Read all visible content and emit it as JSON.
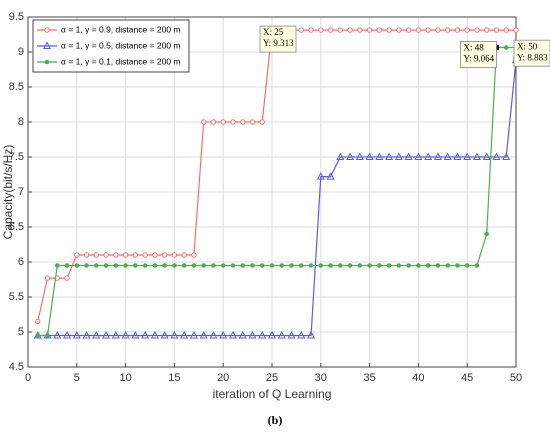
{
  "chart_data": {
    "type": "line",
    "x": [
      1,
      2,
      3,
      4,
      5,
      6,
      7,
      8,
      9,
      10,
      11,
      12,
      13,
      14,
      15,
      16,
      17,
      18,
      19,
      20,
      21,
      22,
      23,
      24,
      25,
      26,
      27,
      28,
      29,
      30,
      31,
      32,
      33,
      34,
      35,
      36,
      37,
      38,
      39,
      40,
      41,
      42,
      43,
      44,
      45,
      46,
      47,
      48,
      49,
      50
    ],
    "series": [
      {
        "name": "α = 1, γ = 0.9, distance = 200 m",
        "color": "#ff6b6b",
        "marker": "circle",
        "values": [
          5.15,
          5.77,
          5.77,
          5.77,
          6.1,
          6.1,
          6.1,
          6.1,
          6.1,
          6.1,
          6.1,
          6.1,
          6.1,
          6.1,
          6.1,
          6.1,
          6.1,
          8.0,
          8.0,
          8.0,
          8.0,
          8.0,
          8.0,
          8.0,
          9.313,
          9.313,
          9.313,
          9.313,
          9.313,
          9.313,
          9.313,
          9.313,
          9.313,
          9.313,
          9.313,
          9.313,
          9.313,
          9.313,
          9.313,
          9.313,
          9.313,
          9.313,
          9.313,
          9.313,
          9.313,
          9.313,
          9.313,
          9.313,
          9.313,
          9.313
        ]
      },
      {
        "name": "α = 1, γ = 0.5, distance = 200 m",
        "color": "#5b5bf0",
        "marker": "triangle",
        "values": [
          4.95,
          4.95,
          4.95,
          4.95,
          4.95,
          4.95,
          4.95,
          4.95,
          4.95,
          4.95,
          4.95,
          4.95,
          4.95,
          4.95,
          4.95,
          4.95,
          4.95,
          4.95,
          4.95,
          4.95,
          4.95,
          4.95,
          4.95,
          4.95,
          4.95,
          4.95,
          4.95,
          4.95,
          4.95,
          7.22,
          7.22,
          7.5,
          7.5,
          7.5,
          7.5,
          7.5,
          7.5,
          7.5,
          7.5,
          7.5,
          7.5,
          7.5,
          7.5,
          7.5,
          7.5,
          7.5,
          7.5,
          7.5,
          7.5,
          8.883
        ]
      },
      {
        "name": "α = 1, γ = 0.1, distance = 200 m",
        "color": "#4caf50",
        "marker": "dot",
        "values": [
          4.95,
          4.95,
          5.95,
          5.95,
          5.95,
          5.95,
          5.95,
          5.95,
          5.95,
          5.95,
          5.95,
          5.95,
          5.95,
          5.95,
          5.95,
          5.95,
          5.95,
          5.95,
          5.95,
          5.95,
          5.95,
          5.95,
          5.95,
          5.95,
          5.95,
          5.95,
          5.95,
          5.95,
          5.95,
          5.95,
          5.95,
          5.95,
          5.95,
          5.95,
          5.95,
          5.95,
          5.95,
          5.95,
          5.95,
          5.95,
          5.95,
          5.95,
          5.95,
          5.95,
          5.95,
          5.95,
          6.4,
          9.064,
          9.064,
          9.064
        ]
      }
    ],
    "xlim": [
      0,
      50
    ],
    "xticks": [
      0,
      5,
      10,
      15,
      20,
      25,
      30,
      35,
      40,
      45,
      50
    ],
    "ylim": [
      4.5,
      9.5
    ],
    "yticks": [
      4.5,
      5,
      5.5,
      6,
      6.5,
      7,
      7.5,
      8,
      8.5,
      9,
      9.5
    ],
    "grid": true,
    "legend": "upper-left",
    "xlabel": "iteration of Q Learning",
    "ylabel": "Capacity(bit/s/Hz)",
    "caption": "(b)",
    "annotations": [
      {
        "x": 25,
        "y": 9.313,
        "lines": [
          "X: 25",
          "Y: 9.313"
        ]
      },
      {
        "x": 48,
        "y": 9.064,
        "lines": [
          "X: 48",
          "Y: 9.064"
        ]
      },
      {
        "x": 50,
        "y": 8.883,
        "lines": [
          "X: 50",
          "Y: 8.883"
        ]
      }
    ]
  }
}
